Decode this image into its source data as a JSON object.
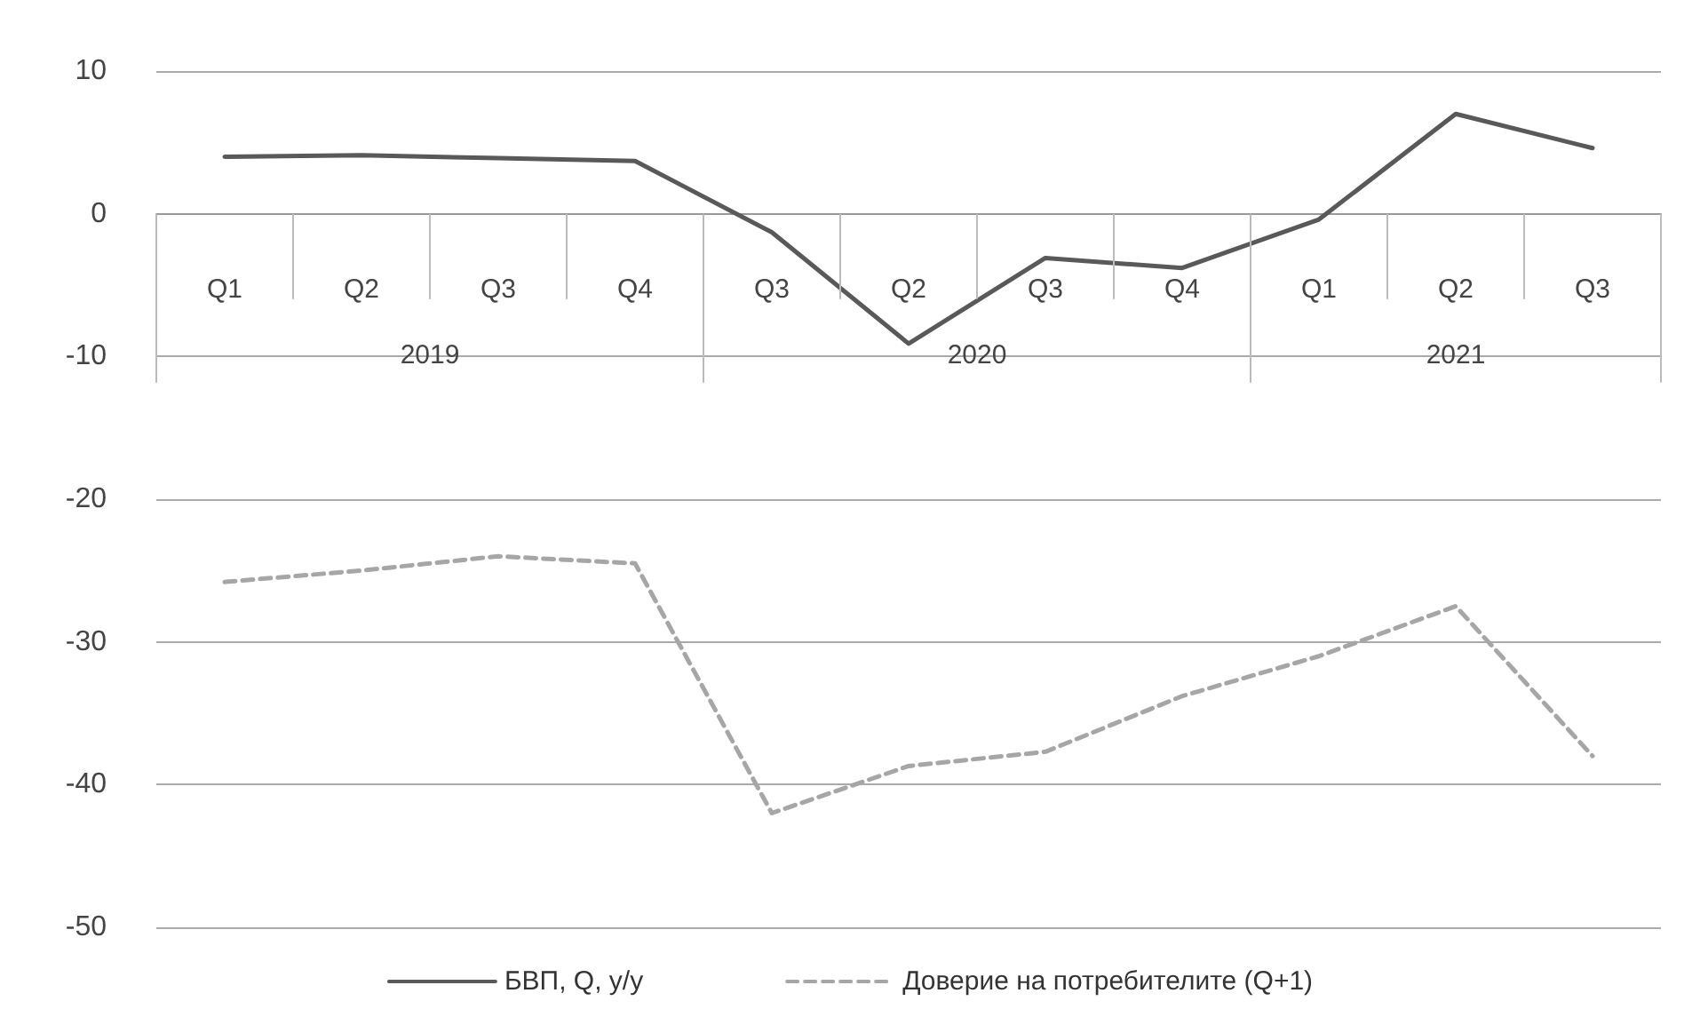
{
  "chart_data": {
    "type": "line",
    "categories": [
      "Q1",
      "Q2",
      "Q3",
      "Q4",
      "Q3",
      "Q2",
      "Q3",
      "Q4",
      "Q1",
      "Q2",
      "Q3"
    ],
    "series": [
      {
        "name": "БВП, Q, y/y",
        "color": "#595959",
        "line_style": "solid",
        "values": [
          4.0,
          4.1,
          3.9,
          3.7,
          -1.3,
          -9.1,
          -3.1,
          -3.8,
          -0.4,
          7.0,
          4.6
        ]
      },
      {
        "name": "Доверие на потребителите (Q+1)",
        "color": "#a6a6a6",
        "line_style": "dashed",
        "values": [
          -25.8,
          -25.0,
          -24.0,
          -24.5,
          -42.0,
          -38.7,
          -37.7,
          -33.8,
          -31.0,
          -27.5,
          -38.0
        ]
      }
    ],
    "annotations": [
      "2019",
      "2020",
      "2021"
    ],
    "ylim": [
      -50,
      10
    ],
    "yticks": [
      -50,
      -40,
      -30,
      -20,
      -10,
      0,
      10
    ],
    "grid": "y",
    "legend": "bottom",
    "marker": "none"
  }
}
